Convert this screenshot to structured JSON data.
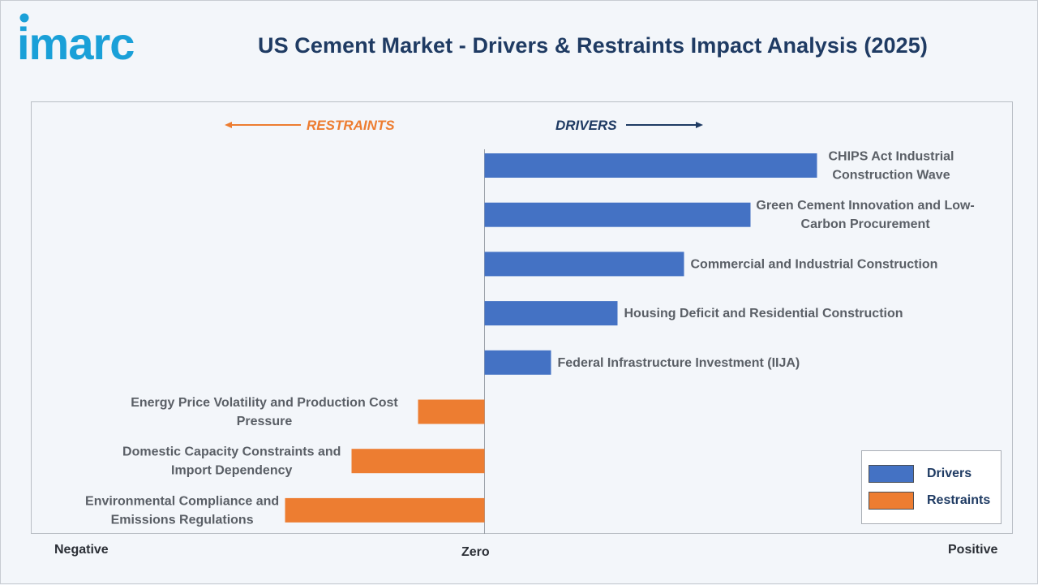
{
  "brand": {
    "logo_text": "imarc",
    "logo_color": "#1aa0d8"
  },
  "title": "US Cement Market - Drivers & Restraints Impact Analysis (2025)",
  "direction_labels": {
    "restraints": "RESTRAINTS",
    "drivers": "DRIVERS"
  },
  "axis_words": {
    "negative": "Negative",
    "zero": "Zero",
    "positive": "Positive"
  },
  "legend": {
    "drivers": "Drivers",
    "restraints": "Restraints"
  },
  "colors": {
    "drivers": "#4472c4",
    "restraints": "#ed7d31",
    "title": "#1f3b63",
    "restraints_text": "#ed7d31",
    "drivers_text": "#1f3b63"
  },
  "chart_data": {
    "type": "bar",
    "orientation": "horizontal",
    "title": "US Cement Market - Drivers & Restraints Impact Analysis (2025)",
    "xlabel": "",
    "ylabel": "",
    "x_axis_words": [
      "Negative",
      "Zero",
      "Positive"
    ],
    "legend_position": "bottom-right",
    "grid": false,
    "series": [
      {
        "name": "Drivers",
        "color": "#4472c4",
        "items": [
          {
            "label_lines": [
              "CHIPS Act Industrial",
              "Construction Wave"
            ],
            "value": 5
          },
          {
            "label_lines": [
              "Green Cement Innovation and Low-",
              "Carbon Procurement"
            ],
            "value": 4
          },
          {
            "label_lines": [
              "Commercial and Industrial Construction"
            ],
            "value": 3
          },
          {
            "label_lines": [
              "Housing Deficit and Residential Construction"
            ],
            "value": 2
          },
          {
            "label_lines": [
              "Federal Infrastructure Investment (IIJA)"
            ],
            "value": 1
          }
        ]
      },
      {
        "name": "Restraints",
        "color": "#ed7d31",
        "items": [
          {
            "label_lines": [
              "Energy Price Volatility and Production Cost",
              "Pressure"
            ],
            "value": -1
          },
          {
            "label_lines": [
              "Domestic Capacity Constraints and",
              "Import Dependency"
            ],
            "value": -2
          },
          {
            "label_lines": [
              "Environmental Compliance and",
              "Emissions Regulations"
            ],
            "value": -3
          }
        ]
      }
    ]
  }
}
